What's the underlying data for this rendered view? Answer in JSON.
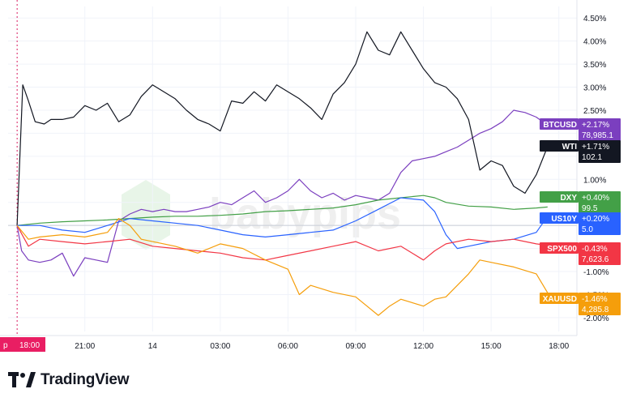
{
  "chart_data": {
    "type": "line",
    "y_unit": "%",
    "ylim": [
      -2.3,
      4.75
    ],
    "y_ticks": [
      "4.50%",
      "4.00%",
      "3.50%",
      "3.00%",
      "2.50%",
      "2.00%",
      "1.50%",
      "1.00%",
      "0.50%",
      "0.00%",
      "-0.50%",
      "-1.00%",
      "-1.50%",
      "-2.00%"
    ],
    "y_tick_values": [
      4.5,
      4.0,
      3.5,
      3.0,
      2.5,
      2.0,
      1.5,
      1.0,
      0.5,
      0.0,
      -0.5,
      -1.0,
      -1.5,
      -2.0
    ],
    "x_ticks": [
      "21:00",
      "14",
      "03:00",
      "06:00",
      "09:00",
      "12:00",
      "15:00",
      "18:00"
    ],
    "x_tick_hours": [
      3,
      6,
      9,
      12,
      15,
      18,
      21,
      24
    ],
    "xlim_hours": [
      -0.4,
      24.8
    ],
    "crosshair_label": "18:00",
    "crosshair_prefix": "p",
    "grid": true,
    "watermark": "babypips",
    "series": [
      {
        "name": "BTCUSD",
        "color": "#7B3FBF",
        "change": "+2.17%",
        "price": "78,985.1",
        "values": [
          [
            0,
            0
          ],
          [
            0.2,
            -0.55
          ],
          [
            0.5,
            -0.75
          ],
          [
            1,
            -0.8
          ],
          [
            1.5,
            -0.75
          ],
          [
            2,
            -0.6
          ],
          [
            2.5,
            -1.1
          ],
          [
            3,
            -0.7
          ],
          [
            3.5,
            -0.75
          ],
          [
            4,
            -0.8
          ],
          [
            4.5,
            0.1
          ],
          [
            5,
            0.25
          ],
          [
            5.5,
            0.35
          ],
          [
            6,
            0.3
          ],
          [
            6.5,
            0.35
          ],
          [
            7,
            0.3
          ],
          [
            7.5,
            0.3
          ],
          [
            8,
            0.35
          ],
          [
            8.5,
            0.4
          ],
          [
            9,
            0.5
          ],
          [
            9.5,
            0.45
          ],
          [
            10,
            0.6
          ],
          [
            10.5,
            0.75
          ],
          [
            11,
            0.5
          ],
          [
            11.5,
            0.6
          ],
          [
            12,
            0.75
          ],
          [
            12.5,
            1.0
          ],
          [
            13,
            0.75
          ],
          [
            13.5,
            0.6
          ],
          [
            14,
            0.7
          ],
          [
            14.5,
            0.55
          ],
          [
            15,
            0.65
          ],
          [
            15.5,
            0.6
          ],
          [
            16,
            0.55
          ],
          [
            16.5,
            0.7
          ],
          [
            17,
            1.15
          ],
          [
            17.5,
            1.4
          ],
          [
            18,
            1.45
          ],
          [
            18.5,
            1.5
          ],
          [
            19,
            1.6
          ],
          [
            19.5,
            1.7
          ],
          [
            20,
            1.85
          ],
          [
            20.5,
            2.0
          ],
          [
            21,
            2.1
          ],
          [
            21.5,
            2.25
          ],
          [
            22,
            2.5
          ],
          [
            22.5,
            2.45
          ],
          [
            23,
            2.35
          ],
          [
            23.5,
            2.17
          ]
        ]
      },
      {
        "name": "WTI",
        "color": "#131722",
        "change": "+1.71%",
        "price": "102.1",
        "values": [
          [
            0,
            0
          ],
          [
            0.25,
            3.05
          ],
          [
            0.5,
            2.7
          ],
          [
            0.8,
            2.25
          ],
          [
            1.2,
            2.2
          ],
          [
            1.5,
            2.3
          ],
          [
            2,
            2.3
          ],
          [
            2.5,
            2.35
          ],
          [
            3,
            2.6
          ],
          [
            3.5,
            2.5
          ],
          [
            4,
            2.65
          ],
          [
            4.5,
            2.25
          ],
          [
            5,
            2.4
          ],
          [
            5.5,
            2.8
          ],
          [
            6,
            3.05
          ],
          [
            6.5,
            2.9
          ],
          [
            7,
            2.75
          ],
          [
            7.5,
            2.5
          ],
          [
            8,
            2.3
          ],
          [
            8.5,
            2.2
          ],
          [
            9,
            2.05
          ],
          [
            9.5,
            2.7
          ],
          [
            10,
            2.65
          ],
          [
            10.5,
            2.9
          ],
          [
            11,
            2.7
          ],
          [
            11.5,
            3.05
          ],
          [
            12,
            2.9
          ],
          [
            12.5,
            2.75
          ],
          [
            13,
            2.55
          ],
          [
            13.5,
            2.3
          ],
          [
            14,
            2.85
          ],
          [
            14.5,
            3.1
          ],
          [
            15,
            3.5
          ],
          [
            15.5,
            4.2
          ],
          [
            16,
            3.8
          ],
          [
            16.5,
            3.7
          ],
          [
            17,
            4.2
          ],
          [
            17.5,
            3.8
          ],
          [
            18,
            3.4
          ],
          [
            18.5,
            3.1
          ],
          [
            19,
            3.0
          ],
          [
            19.5,
            2.75
          ],
          [
            20,
            2.3
          ],
          [
            20.5,
            1.2
          ],
          [
            21,
            1.4
          ],
          [
            21.5,
            1.3
          ],
          [
            22,
            0.85
          ],
          [
            22.5,
            0.7
          ],
          [
            23,
            1.1
          ],
          [
            23.5,
            1.71
          ]
        ]
      },
      {
        "name": "DXY",
        "color": "#43A047",
        "change": "+0.40%",
        "price": "99.5",
        "values": [
          [
            0,
            0
          ],
          [
            1,
            0.05
          ],
          [
            2,
            0.08
          ],
          [
            3,
            0.1
          ],
          [
            4,
            0.12
          ],
          [
            5,
            0.15
          ],
          [
            6,
            0.18
          ],
          [
            7,
            0.2
          ],
          [
            8,
            0.2
          ],
          [
            9,
            0.22
          ],
          [
            10,
            0.25
          ],
          [
            11,
            0.3
          ],
          [
            12,
            0.32
          ],
          [
            13,
            0.35
          ],
          [
            14,
            0.38
          ],
          [
            15,
            0.45
          ],
          [
            16,
            0.55
          ],
          [
            17,
            0.6
          ],
          [
            18,
            0.65
          ],
          [
            18.5,
            0.6
          ],
          [
            19,
            0.5
          ],
          [
            20,
            0.42
          ],
          [
            21,
            0.4
          ],
          [
            22,
            0.35
          ],
          [
            23,
            0.38
          ],
          [
            23.5,
            0.4
          ]
        ]
      },
      {
        "name": "US10Y",
        "color": "#2962FF",
        "change": "+0.20%",
        "price": "5.0",
        "values": [
          [
            0,
            0
          ],
          [
            1,
            0
          ],
          [
            2,
            -0.1
          ],
          [
            3,
            -0.15
          ],
          [
            4,
            0
          ],
          [
            5,
            0.15
          ],
          [
            6,
            0.1
          ],
          [
            7,
            0.05
          ],
          [
            8,
            0.0
          ],
          [
            9,
            -0.1
          ],
          [
            10,
            -0.2
          ],
          [
            11,
            -0.25
          ],
          [
            12,
            -0.2
          ],
          [
            13,
            -0.15
          ],
          [
            14,
            -0.1
          ],
          [
            15,
            0.1
          ],
          [
            16,
            0.35
          ],
          [
            17,
            0.6
          ],
          [
            18,
            0.55
          ],
          [
            18.5,
            0.3
          ],
          [
            19,
            -0.2
          ],
          [
            19.5,
            -0.5
          ],
          [
            20,
            -0.45
          ],
          [
            21,
            -0.35
          ],
          [
            22,
            -0.3
          ],
          [
            23,
            -0.15
          ],
          [
            23.5,
            0.2
          ]
        ]
      },
      {
        "name": "SPX500",
        "color": "#F23645",
        "change": "-0.43%",
        "price": "7,623.6",
        "values": [
          [
            0,
            0
          ],
          [
            0.5,
            -0.45
          ],
          [
            1,
            -0.3
          ],
          [
            2,
            -0.35
          ],
          [
            3,
            -0.4
          ],
          [
            4,
            -0.35
          ],
          [
            5,
            -0.3
          ],
          [
            6,
            -0.45
          ],
          [
            7,
            -0.5
          ],
          [
            8,
            -0.55
          ],
          [
            9,
            -0.6
          ],
          [
            10,
            -0.7
          ],
          [
            11,
            -0.75
          ],
          [
            12,
            -0.65
          ],
          [
            13,
            -0.55
          ],
          [
            14,
            -0.45
          ],
          [
            15,
            -0.35
          ],
          [
            16,
            -0.55
          ],
          [
            17,
            -0.45
          ],
          [
            17.5,
            -0.6
          ],
          [
            18,
            -0.75
          ],
          [
            18.5,
            -0.55
          ],
          [
            19,
            -0.4
          ],
          [
            20,
            -0.3
          ],
          [
            21,
            -0.35
          ],
          [
            22,
            -0.3
          ],
          [
            23,
            -0.4
          ],
          [
            23.5,
            -0.43
          ]
        ]
      },
      {
        "name": "XAUUSD",
        "color": "#F59E0B",
        "change": "-1.46%",
        "price": "4,285.8",
        "values": [
          [
            0,
            0
          ],
          [
            0.5,
            -0.3
          ],
          [
            1,
            -0.25
          ],
          [
            2,
            -0.2
          ],
          [
            3,
            -0.25
          ],
          [
            4,
            -0.15
          ],
          [
            4.5,
            0.15
          ],
          [
            5,
            0.0
          ],
          [
            5.5,
            -0.3
          ],
          [
            6,
            -0.35
          ],
          [
            7,
            -0.45
          ],
          [
            8,
            -0.6
          ],
          [
            9,
            -0.4
          ],
          [
            10,
            -0.5
          ],
          [
            11,
            -0.75
          ],
          [
            12,
            -0.95
          ],
          [
            12.5,
            -1.5
          ],
          [
            13,
            -1.3
          ],
          [
            14,
            -1.45
          ],
          [
            15,
            -1.55
          ],
          [
            16,
            -1.95
          ],
          [
            16.5,
            -1.75
          ],
          [
            17,
            -1.6
          ],
          [
            18,
            -1.75
          ],
          [
            18.5,
            -1.6
          ],
          [
            19,
            -1.55
          ],
          [
            20,
            -1.05
          ],
          [
            20.5,
            -0.75
          ],
          [
            21,
            -0.8
          ],
          [
            22,
            -0.9
          ],
          [
            23,
            -1.05
          ],
          [
            23.5,
            -1.46
          ]
        ]
      }
    ]
  },
  "branding": {
    "name": "TradingView"
  }
}
